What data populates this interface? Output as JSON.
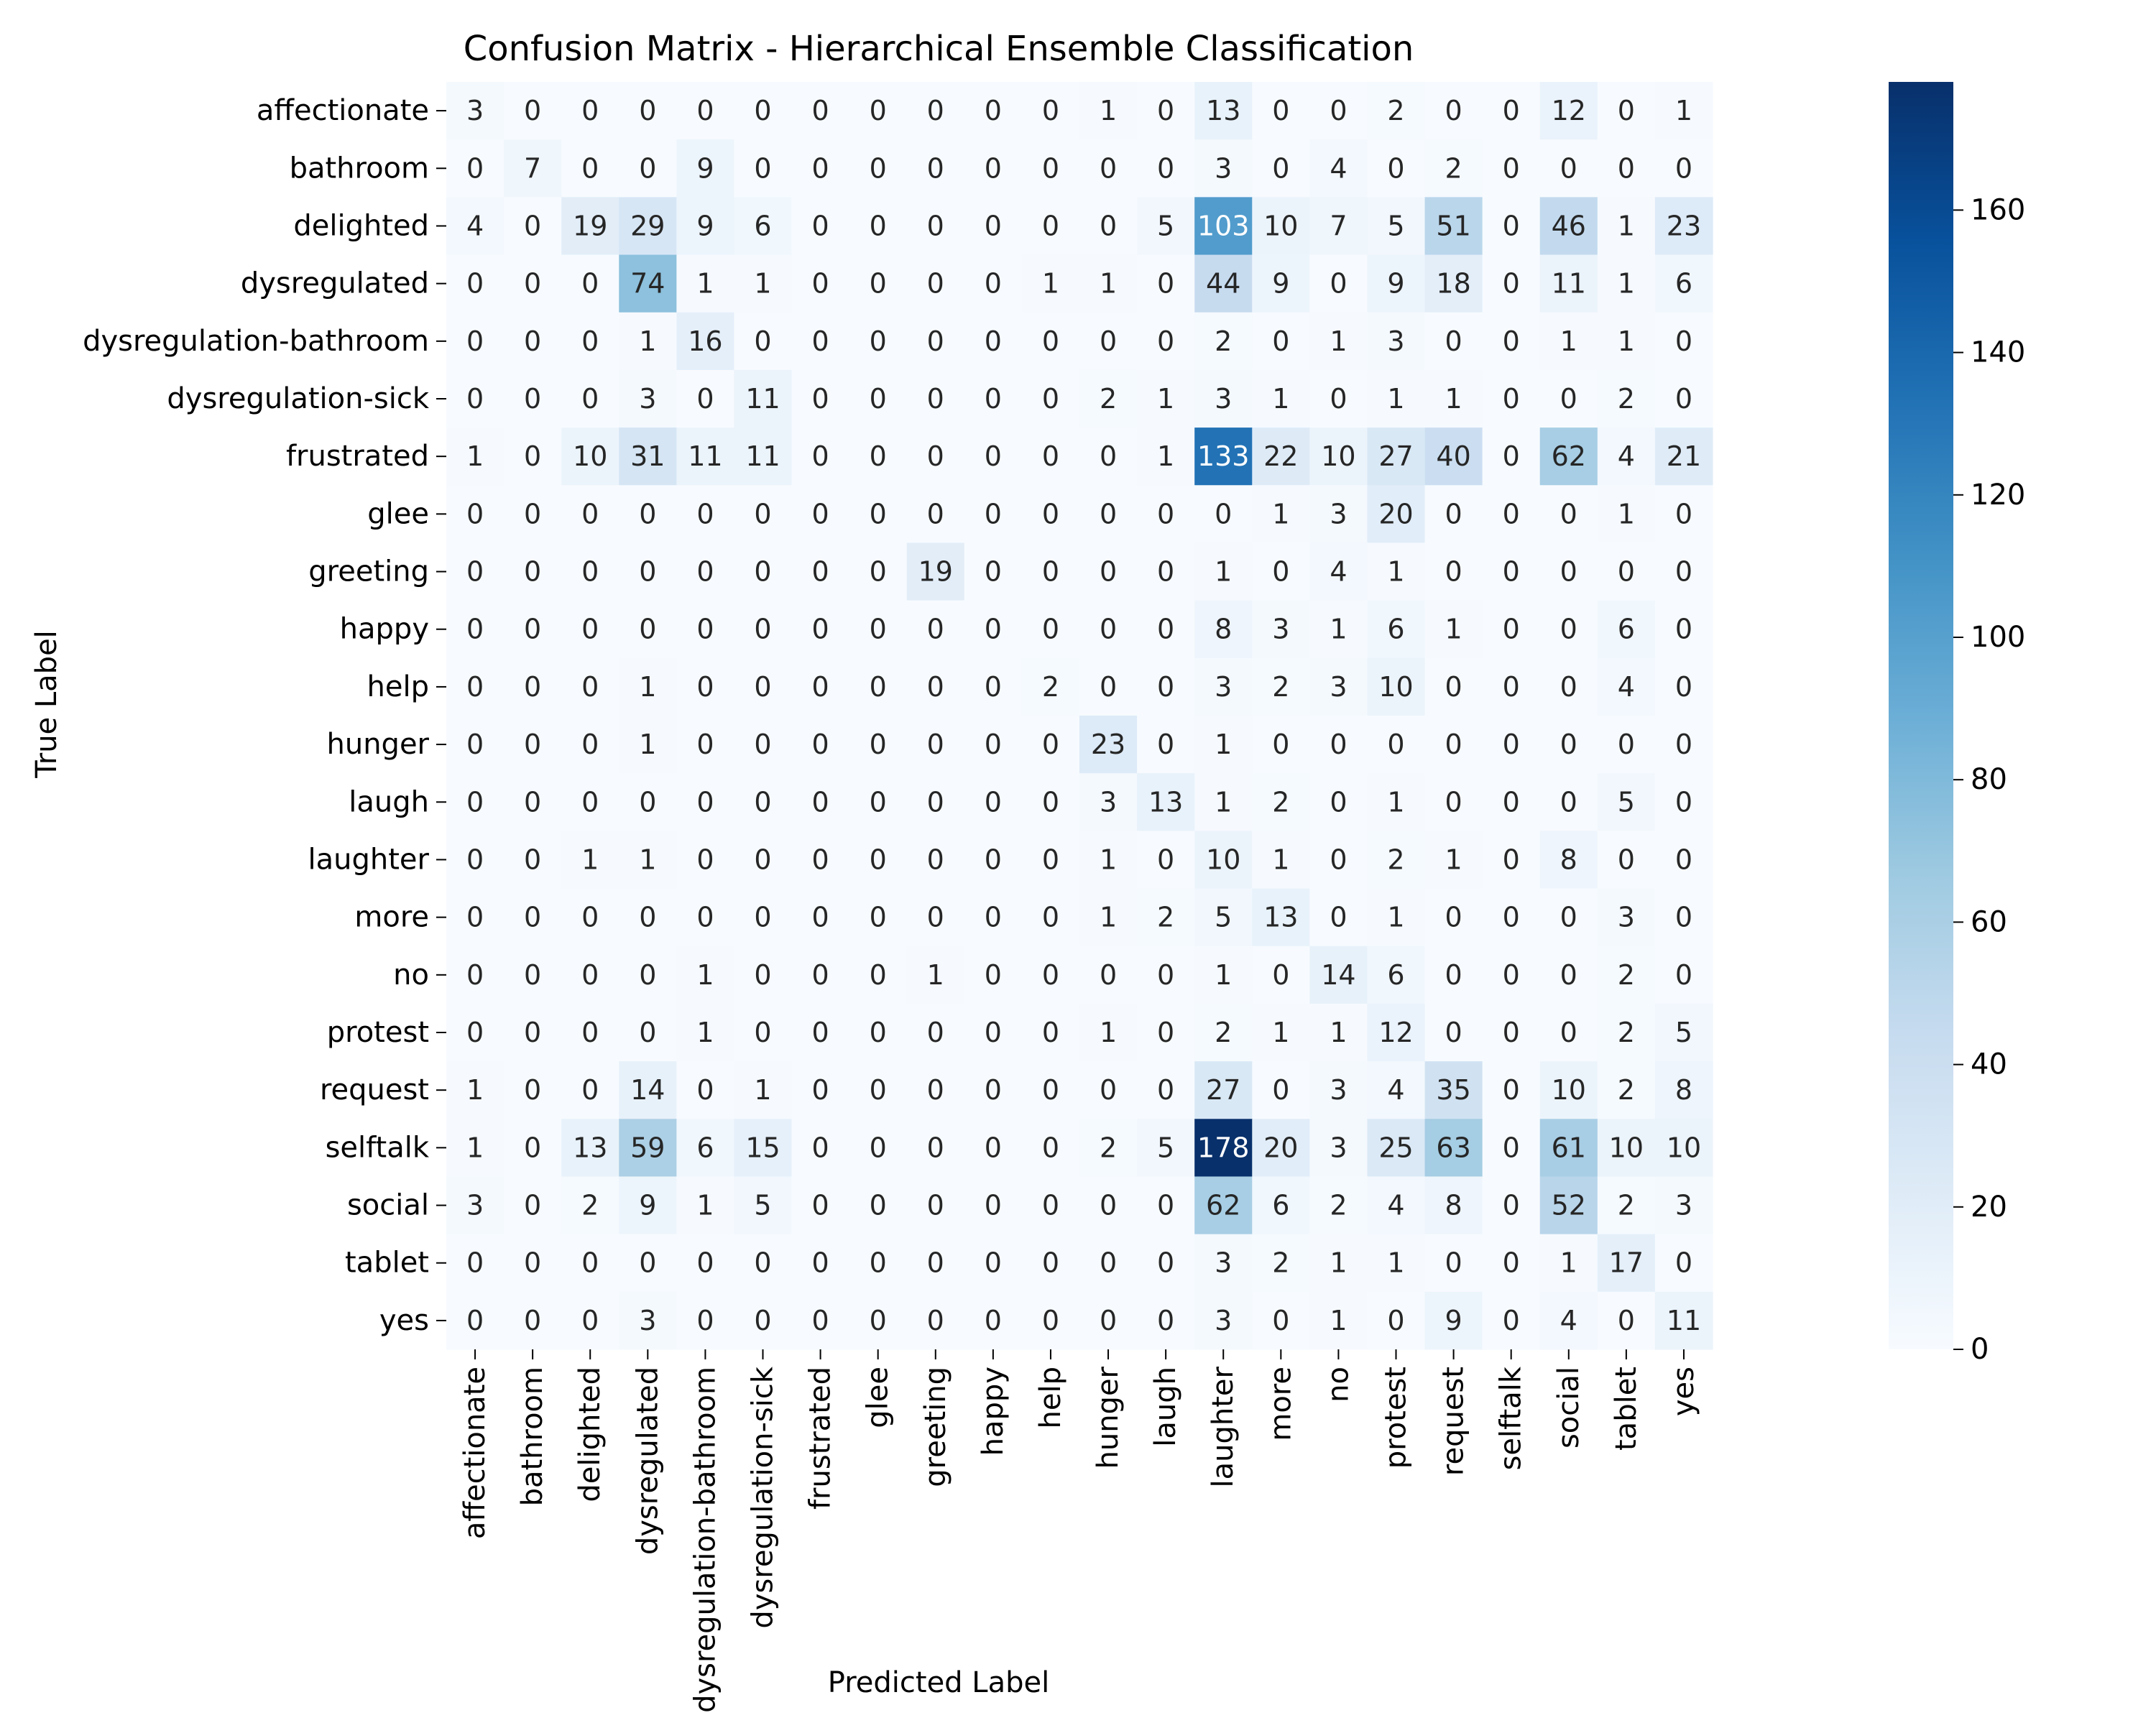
{
  "chart_data": {
    "type": "heatmap",
    "title": "Confusion Matrix - Hierarchical Ensemble Classification",
    "xlabel": "Predicted Label",
    "ylabel": "True Label",
    "labels": [
      "affectionate",
      "bathroom",
      "delighted",
      "dysregulated",
      "dysregulation-bathroom",
      "dysregulation-sick",
      "frustrated",
      "glee",
      "greeting",
      "happy",
      "help",
      "hunger",
      "laugh",
      "laughter",
      "more",
      "no",
      "protest",
      "request",
      "selftalk",
      "social",
      "tablet",
      "yes"
    ],
    "matrix": [
      [
        3,
        0,
        0,
        0,
        0,
        0,
        0,
        0,
        0,
        0,
        0,
        1,
        0,
        13,
        0,
        0,
        2,
        0,
        0,
        12,
        0,
        1
      ],
      [
        0,
        7,
        0,
        0,
        9,
        0,
        0,
        0,
        0,
        0,
        0,
        0,
        0,
        3,
        0,
        4,
        0,
        2,
        0,
        0,
        0,
        0
      ],
      [
        4,
        0,
        19,
        29,
        9,
        6,
        0,
        0,
        0,
        0,
        0,
        0,
        5,
        103,
        10,
        7,
        5,
        51,
        0,
        46,
        1,
        23
      ],
      [
        0,
        0,
        0,
        74,
        1,
        1,
        0,
        0,
        0,
        0,
        1,
        1,
        0,
        44,
        9,
        0,
        9,
        18,
        0,
        11,
        1,
        6
      ],
      [
        0,
        0,
        0,
        1,
        16,
        0,
        0,
        0,
        0,
        0,
        0,
        0,
        0,
        2,
        0,
        1,
        3,
        0,
        0,
        1,
        1,
        0
      ],
      [
        0,
        0,
        0,
        3,
        0,
        11,
        0,
        0,
        0,
        0,
        0,
        2,
        1,
        3,
        1,
        0,
        1,
        1,
        0,
        0,
        2,
        0
      ],
      [
        1,
        0,
        10,
        31,
        11,
        11,
        0,
        0,
        0,
        0,
        0,
        0,
        1,
        133,
        22,
        10,
        27,
        40,
        0,
        62,
        4,
        21
      ],
      [
        0,
        0,
        0,
        0,
        0,
        0,
        0,
        0,
        0,
        0,
        0,
        0,
        0,
        0,
        1,
        3,
        20,
        0,
        0,
        0,
        1,
        0
      ],
      [
        0,
        0,
        0,
        0,
        0,
        0,
        0,
        0,
        19,
        0,
        0,
        0,
        0,
        1,
        0,
        4,
        1,
        0,
        0,
        0,
        0,
        0
      ],
      [
        0,
        0,
        0,
        0,
        0,
        0,
        0,
        0,
        0,
        0,
        0,
        0,
        0,
        8,
        3,
        1,
        6,
        1,
        0,
        0,
        6,
        0
      ],
      [
        0,
        0,
        0,
        1,
        0,
        0,
        0,
        0,
        0,
        0,
        2,
        0,
        0,
        3,
        2,
        3,
        10,
        0,
        0,
        0,
        4,
        0
      ],
      [
        0,
        0,
        0,
        1,
        0,
        0,
        0,
        0,
        0,
        0,
        0,
        23,
        0,
        1,
        0,
        0,
        0,
        0,
        0,
        0,
        0,
        0
      ],
      [
        0,
        0,
        0,
        0,
        0,
        0,
        0,
        0,
        0,
        0,
        0,
        3,
        13,
        1,
        2,
        0,
        1,
        0,
        0,
        0,
        5,
        0
      ],
      [
        0,
        0,
        1,
        1,
        0,
        0,
        0,
        0,
        0,
        0,
        0,
        1,
        0,
        10,
        1,
        0,
        2,
        1,
        0,
        8,
        0,
        0
      ],
      [
        0,
        0,
        0,
        0,
        0,
        0,
        0,
        0,
        0,
        0,
        0,
        1,
        2,
        5,
        13,
        0,
        1,
        0,
        0,
        0,
        3,
        0
      ],
      [
        0,
        0,
        0,
        0,
        1,
        0,
        0,
        0,
        1,
        0,
        0,
        0,
        0,
        1,
        0,
        14,
        6,
        0,
        0,
        0,
        2,
        0
      ],
      [
        0,
        0,
        0,
        0,
        1,
        0,
        0,
        0,
        0,
        0,
        0,
        1,
        0,
        2,
        1,
        1,
        12,
        0,
        0,
        0,
        2,
        5
      ],
      [
        1,
        0,
        0,
        14,
        0,
        1,
        0,
        0,
        0,
        0,
        0,
        0,
        0,
        27,
        0,
        3,
        4,
        35,
        0,
        10,
        2,
        8
      ],
      [
        1,
        0,
        13,
        59,
        6,
        15,
        0,
        0,
        0,
        0,
        0,
        2,
        5,
        178,
        20,
        3,
        25,
        63,
        0,
        61,
        10,
        10
      ],
      [
        3,
        0,
        2,
        9,
        1,
        5,
        0,
        0,
        0,
        0,
        0,
        0,
        0,
        62,
        6,
        2,
        4,
        8,
        0,
        52,
        2,
        3
      ],
      [
        0,
        0,
        0,
        0,
        0,
        0,
        0,
        0,
        0,
        0,
        0,
        0,
        0,
        3,
        2,
        1,
        1,
        0,
        0,
        1,
        17,
        0
      ],
      [
        0,
        0,
        0,
        3,
        0,
        0,
        0,
        0,
        0,
        0,
        0,
        0,
        0,
        3,
        0,
        1,
        0,
        9,
        0,
        4,
        0,
        11
      ]
    ],
    "colorbar": {
      "range": [
        0,
        178
      ],
      "ticks": [
        0,
        20,
        40,
        60,
        80,
        100,
        120,
        140,
        160
      ],
      "colormap": "Blues",
      "low_color": "#f7fbff",
      "high_color": "#08306b"
    },
    "grid": false
  }
}
